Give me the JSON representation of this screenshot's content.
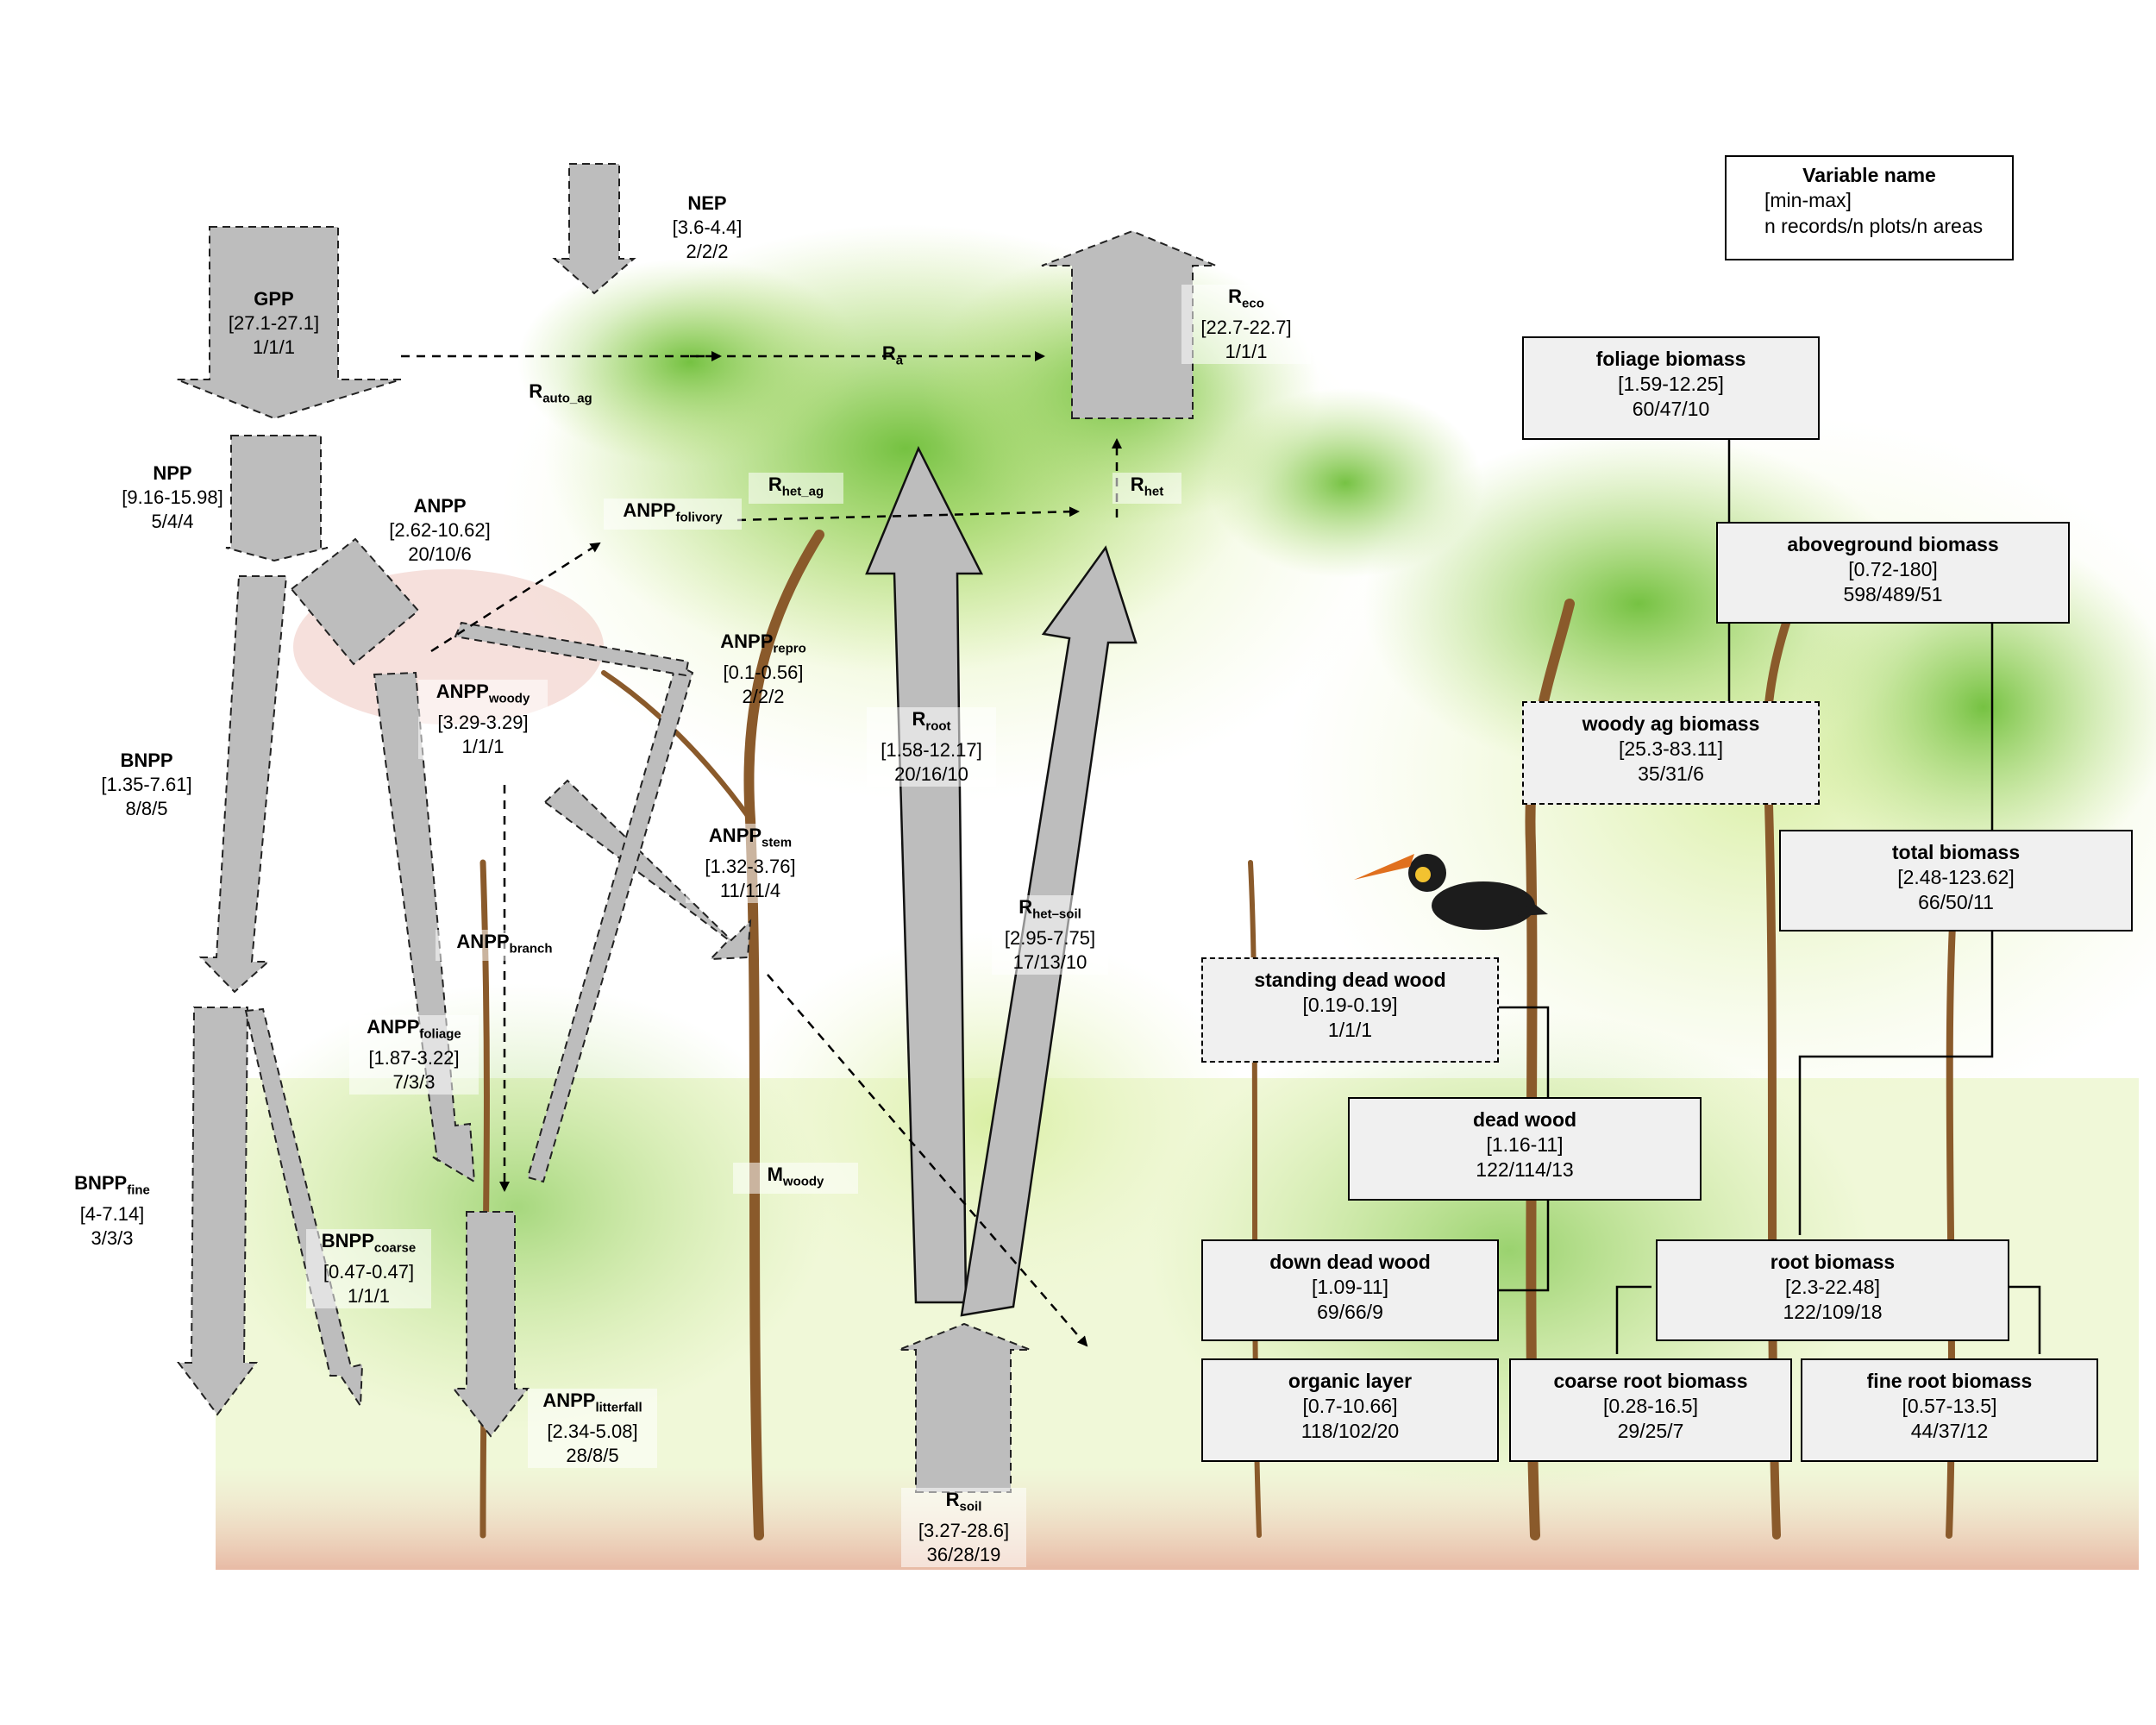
{
  "colors": {
    "arrow_fill": "#bdbdbd",
    "box_fill": "#f0f0f0",
    "foliage": "#8cc84b",
    "soil": "#e9b8a4"
  },
  "legend": {
    "title": "Variable name",
    "line1": "[min-max]",
    "line2": "n records/n plots/n areas"
  },
  "fluxes": {
    "nep": {
      "name": "NEP",
      "sub": "",
      "range": "[3.6-4.4]",
      "n": "2/2/2"
    },
    "gpp": {
      "name": "GPP",
      "sub": "",
      "range": "[27.1-27.1]",
      "n": "1/1/1"
    },
    "reco": {
      "name": "R",
      "sub": "eco",
      "range": "[22.7-22.7]",
      "n": "1/1/1"
    },
    "ra": {
      "name": "R",
      "sub": "a"
    },
    "rauto_ag": {
      "name": "R",
      "sub": "auto_ag"
    },
    "npp": {
      "name": "NPP",
      "sub": "",
      "range": "[9.16-15.98]",
      "n": "5/4/4"
    },
    "anpp": {
      "name": "ANPP",
      "sub": "",
      "range": "[2.62-10.62]",
      "n": "20/10/6"
    },
    "anpp_folivory": {
      "name": "ANPP",
      "sub": "folivory"
    },
    "rhet_ag": {
      "name": "R",
      "sub": "het_ag"
    },
    "rhet": {
      "name": "R",
      "sub": "het"
    },
    "anpp_repro": {
      "name": "ANPP",
      "sub": "repro",
      "range": "[0.1-0.56]",
      "n": "2/2/2"
    },
    "anpp_woody": {
      "name": "ANPP",
      "sub": "woody",
      "range": "[3.29-3.29]",
      "n": "1/1/1"
    },
    "bnpp": {
      "name": "BNPP",
      "sub": "",
      "range": "[1.35-7.61]",
      "n": "8/8/5"
    },
    "rroot": {
      "name": "R",
      "sub": "root",
      "range": "[1.58-12.17]",
      "n": "20/16/10"
    },
    "anpp_stem": {
      "name": "ANPP",
      "sub": "stem",
      "range": "[1.32-3.76]",
      "n": "11/11/4"
    },
    "rhet_soil": {
      "name": "R",
      "sub": "het–soil",
      "range": "[2.95-7.75]",
      "n": "17/13/10"
    },
    "anpp_branch": {
      "name": "ANPP",
      "sub": "branch"
    },
    "anpp_foliage": {
      "name": "ANPP",
      "sub": "foliage",
      "range": "[1.87-3.22]",
      "n": "7/3/3"
    },
    "mwoody": {
      "name": "M",
      "sub": "woody"
    },
    "bnpp_fine": {
      "name": "BNPP",
      "sub": "fine",
      "range": "[4-7.14]",
      "n": "3/3/3"
    },
    "bnpp_coarse": {
      "name": "BNPP",
      "sub": "coarse",
      "range": "[0.47-0.47]",
      "n": "1/1/1"
    },
    "anpp_litterfall": {
      "name": "ANPP",
      "sub": "litterfall",
      "range": "[2.34-5.08]",
      "n": "28/8/5"
    },
    "rsoil": {
      "name": "R",
      "sub": "soil",
      "range": "[3.27-28.6]",
      "n": "36/28/19"
    }
  },
  "stocks": {
    "foliage": {
      "name": "foliage biomass",
      "range": "[1.59-12.25]",
      "n": "60/47/10"
    },
    "aboveground": {
      "name": "aboveground biomass",
      "range": "[0.72-180]",
      "n": "598/489/51"
    },
    "woody_ag": {
      "name": "woody ag biomass",
      "range": "[25.3-83.11]",
      "n": "35/31/6"
    },
    "total": {
      "name": "total biomass",
      "range": "[2.48-123.62]",
      "n": "66/50/11"
    },
    "standing_dead": {
      "name": "standing dead wood",
      "range": "[0.19-0.19]",
      "n": "1/1/1"
    },
    "dead_wood": {
      "name": "dead wood",
      "range": "[1.16-11]",
      "n": "122/114/13"
    },
    "down_dead": {
      "name": "down dead wood",
      "range": "[1.09-11]",
      "n": "69/66/9"
    },
    "root": {
      "name": "root biomass",
      "range": "[2.3-22.48]",
      "n": "122/109/18"
    },
    "organic": {
      "name": "organic layer",
      "range": "[0.7-10.66]",
      "n": "118/102/20"
    },
    "coarse_root": {
      "name": "coarse root biomass",
      "range": "[0.28-16.5]",
      "n": "29/25/7"
    },
    "fine_root": {
      "name": "fine root biomass",
      "range": "[0.57-13.5]",
      "n": "44/37/12"
    }
  }
}
